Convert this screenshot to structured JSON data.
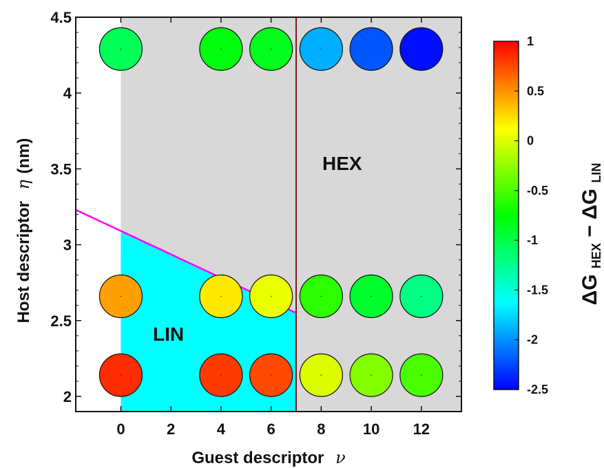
{
  "chart_data": {
    "type": "scatter",
    "xlabel": "Guest descriptor",
    "xlabel_symbol": "ν",
    "ylabel": "Host descriptor",
    "ylabel_symbol": "η",
    "ylabel_unit": "(nm)",
    "xlim": [
      -1.8,
      13.6
    ],
    "ylim": [
      1.9,
      4.5
    ],
    "x_ticks": [
      0,
      2,
      4,
      6,
      8,
      10,
      12
    ],
    "y_ticks": [
      2,
      2.5,
      3,
      3.5,
      4,
      4.5
    ],
    "x_tick_labels": [
      "0",
      "2",
      "4",
      "6",
      "8",
      "10",
      "12"
    ],
    "y_tick_labels": [
      "2",
      "2.5",
      "3",
      "3.5",
      "4",
      "4.5"
    ],
    "grid": false,
    "legend": "colorbar-right",
    "regions": {
      "lin": {
        "label": "LIN",
        "color": "#00ffff",
        "boundary_line": {
          "x": [
            -1.8,
            7
          ],
          "y": [
            3.23,
            2.55
          ],
          "color": "#ff00ff"
        }
      },
      "hex": {
        "label": "HEX",
        "color": "#d8d8d8",
        "divider_x": 7,
        "divider_color": "#7a1a1a"
      }
    },
    "points": [
      {
        "x": 0,
        "y": 4.29,
        "value": -1.05
      },
      {
        "x": 4,
        "y": 4.29,
        "value": -0.8
      },
      {
        "x": 6,
        "y": 4.29,
        "value": -0.85
      },
      {
        "x": 8,
        "y": 4.29,
        "value": -1.9
      },
      {
        "x": 10,
        "y": 4.29,
        "value": -2.2
      },
      {
        "x": 12,
        "y": 4.29,
        "value": -2.45
      },
      {
        "x": 0,
        "y": 2.66,
        "value": 0.45
      },
      {
        "x": 4,
        "y": 2.66,
        "value": 0.2
      },
      {
        "x": 6,
        "y": 2.66,
        "value": 0.05
      },
      {
        "x": 8,
        "y": 2.66,
        "value": -0.6
      },
      {
        "x": 10,
        "y": 2.66,
        "value": -0.9
      },
      {
        "x": 12,
        "y": 2.66,
        "value": -1.2
      },
      {
        "x": 0,
        "y": 2.14,
        "value": 0.85
      },
      {
        "x": 4,
        "y": 2.14,
        "value": 0.8
      },
      {
        "x": 6,
        "y": 2.14,
        "value": 0.75
      },
      {
        "x": 8,
        "y": 2.14,
        "value": 0.0
      },
      {
        "x": 10,
        "y": 2.14,
        "value": -0.3
      },
      {
        "x": 12,
        "y": 2.14,
        "value": -0.5
      }
    ],
    "colorbar": {
      "min": -2.5,
      "max": 1,
      "ticks": [
        1,
        0.5,
        0,
        -0.5,
        -1,
        -1.5,
        -2,
        -2.5
      ],
      "tick_labels": [
        "1",
        "0.5",
        "0",
        "-0.5",
        "-1",
        "-1.5",
        "-2",
        "-2.5"
      ],
      "title_main": "ΔG",
      "title_sub1": "HEX",
      "title_minus": " − ΔG",
      "title_sub2": "LIN",
      "colormap": [
        "#0000ff",
        "#00ffff",
        "#00ff00",
        "#ffff00",
        "#ff0000"
      ]
    }
  }
}
